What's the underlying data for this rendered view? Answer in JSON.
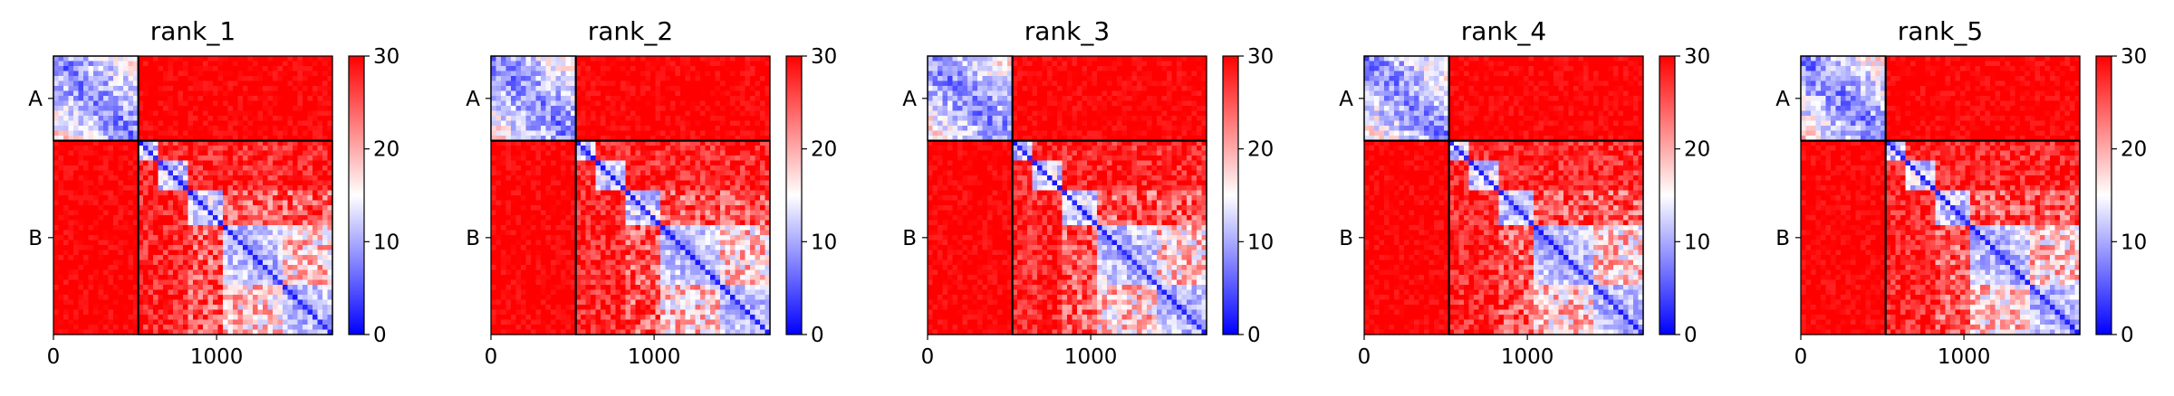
{
  "chart_data": [
    {
      "type": "heatmap",
      "title": "rank_1",
      "xlabel": "",
      "ylabel": "",
      "x_ticks": [
        0,
        1000
      ],
      "xlim": [
        0,
        1710
      ],
      "chains": [
        {
          "label": "A",
          "start": 0,
          "end": 520
        },
        {
          "label": "B",
          "start": 520,
          "end": 1710
        }
      ],
      "colorbar": {
        "range": [
          0,
          30
        ],
        "ticks": [
          0,
          10,
          20,
          30
        ],
        "colormap": "bwr",
        "low_color": "#0000ff",
        "mid_color": "#ffffff",
        "high_color": "#ff0000"
      },
      "grid": false
    },
    {
      "type": "heatmap",
      "title": "rank_2",
      "xlabel": "",
      "ylabel": "",
      "x_ticks": [
        0,
        1000
      ],
      "xlim": [
        0,
        1710
      ],
      "chains": [
        {
          "label": "A",
          "start": 0,
          "end": 520
        },
        {
          "label": "B",
          "start": 520,
          "end": 1710
        }
      ],
      "colorbar": {
        "range": [
          0,
          30
        ],
        "ticks": [
          0,
          10,
          20,
          30
        ],
        "colormap": "bwr",
        "low_color": "#0000ff",
        "mid_color": "#ffffff",
        "high_color": "#ff0000"
      },
      "grid": false
    },
    {
      "type": "heatmap",
      "title": "rank_3",
      "xlabel": "",
      "ylabel": "",
      "x_ticks": [
        0,
        1000
      ],
      "xlim": [
        0,
        1710
      ],
      "chains": [
        {
          "label": "A",
          "start": 0,
          "end": 520
        },
        {
          "label": "B",
          "start": 520,
          "end": 1710
        }
      ],
      "colorbar": {
        "range": [
          0,
          30
        ],
        "ticks": [
          0,
          10,
          20,
          30
        ],
        "colormap": "bwr",
        "low_color": "#0000ff",
        "mid_color": "#ffffff",
        "high_color": "#ff0000"
      },
      "grid": false
    },
    {
      "type": "heatmap",
      "title": "rank_4",
      "xlabel": "",
      "ylabel": "",
      "x_ticks": [
        0,
        1000
      ],
      "xlim": [
        0,
        1710
      ],
      "chains": [
        {
          "label": "A",
          "start": 0,
          "end": 520
        },
        {
          "label": "B",
          "start": 520,
          "end": 1710
        }
      ],
      "colorbar": {
        "range": [
          0,
          30
        ],
        "ticks": [
          0,
          10,
          20,
          30
        ],
        "colormap": "bwr",
        "low_color": "#0000ff",
        "mid_color": "#ffffff",
        "high_color": "#ff0000"
      },
      "grid": false
    },
    {
      "type": "heatmap",
      "title": "rank_5",
      "xlabel": "",
      "ylabel": "",
      "x_ticks": [
        0,
        1000
      ],
      "xlim": [
        0,
        1710
      ],
      "chains": [
        {
          "label": "A",
          "start": 0,
          "end": 520
        },
        {
          "label": "B",
          "start": 520,
          "end": 1710
        }
      ],
      "colorbar": {
        "range": [
          0,
          30
        ],
        "ticks": [
          0,
          10,
          20,
          30
        ],
        "colormap": "bwr",
        "low_color": "#0000ff",
        "mid_color": "#ffffff",
        "high_color": "#ff0000"
      },
      "grid": false
    }
  ]
}
